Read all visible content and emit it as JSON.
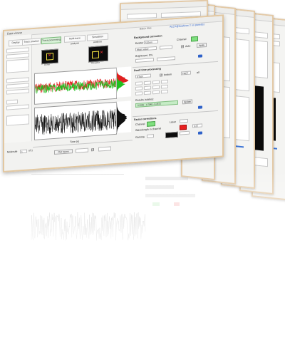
{
  "window_title": "Data viewer",
  "top_links": {
    "left_label": "Batch files",
    "right_label": "ALEX@dualview 2 on panel(s)"
  },
  "tabs": [
    {
      "label": "Display",
      "active": false
    },
    {
      "label": "Trace preview",
      "active": false
    },
    {
      "label": "Trace processing",
      "active": true
    },
    {
      "label": "Multi-trace analysis",
      "active": false
    },
    {
      "label": "Simulation analysis",
      "active": false
    }
  ],
  "roi_panels": [
    {
      "caption": "Donor"
    },
    {
      "caption": "Acceptor"
    }
  ],
  "background_panel": {
    "title": "Background correction",
    "emitter_label": "Emitter",
    "emitter_value": "532nm",
    "channel_label": "Channel",
    "method_value": "Mean value",
    "apply_all_label": "Apply",
    "auto_label": "Auto",
    "brightness_label": "Brightness: 0%"
  },
  "dwell_panel": {
    "title": "Dwell time processing",
    "method_value": "STaSI",
    "bottom_label": "bottom",
    "state_label": "FRET",
    "all_label": "all",
    "results_label": "Results (states):",
    "results_value": "0.3306 - 0.7548 - 0.4572",
    "refresh_label": "Update"
  },
  "factor_panel": {
    "title": "Factor corrections",
    "channel_label": "Channel",
    "laser_label": "Laser",
    "wavelength_label": "Wavelength in channel",
    "gamma_label": "Gamma",
    "gamma_value": "0.67"
  },
  "bottom_bar": {
    "molecule_label": "Molecule",
    "counter": "1",
    "total_label": "of 1",
    "plot_label": "Plot traces",
    "axis_label": "Time (s)"
  },
  "colors": {
    "frame": "#e2c7a0",
    "donor_trace": "#e02020",
    "acceptor_trace": "#20c020",
    "fret_trace": "#111111",
    "active_tab": "#d8f2d8",
    "accent_blue": "#2f62c9"
  },
  "icons": [
    "close-icon",
    "refresh-icon",
    "checkbox-icon",
    "spin-arrow-icon"
  ]
}
